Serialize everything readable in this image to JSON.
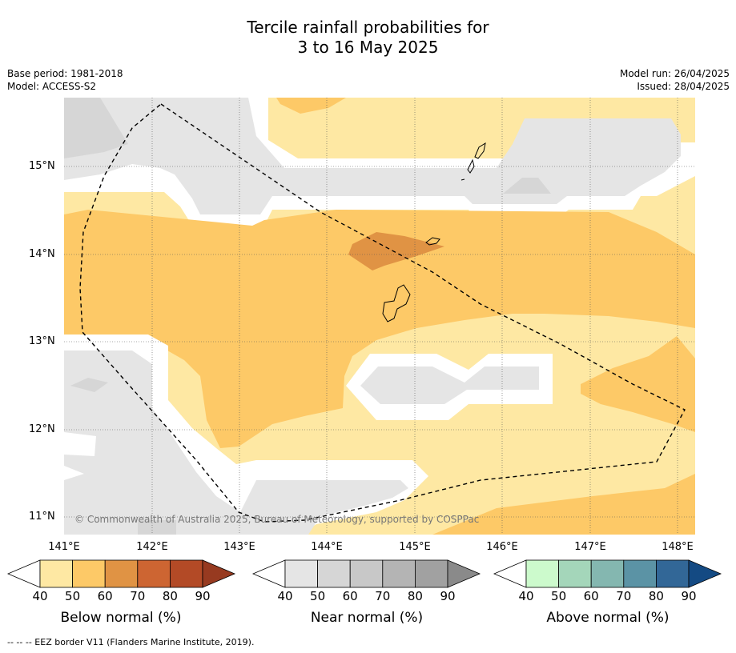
{
  "title": {
    "line1": "Tercile rainfall probabilities for",
    "line2": "3 to 16 May 2025"
  },
  "meta_left": {
    "base_period": "Base period: 1981-2018",
    "model": "Model: ACCESS-S2"
  },
  "meta_right": {
    "model_run": "Model run: 26/04/2025",
    "issued": "Issued: 28/04/2025"
  },
  "map": {
    "latitude_labels": [
      "15°N",
      "14°N",
      "13°N",
      "12°N",
      "11°N"
    ],
    "longitude_labels": [
      "141°E",
      "142°E",
      "143°E",
      "144°E",
      "145°E",
      "146°E",
      "147°E",
      "148°E"
    ],
    "copyright": "© Commonwealth of Australia 2025, Bureau of Meteorology, supported by COSPPac"
  },
  "colorbars": [
    {
      "title": "Below normal (%)",
      "ticks": [
        "40",
        "50",
        "60",
        "70",
        "80",
        "90"
      ],
      "colors": [
        "#fee8a3",
        "#fdc967",
        "#e09344",
        "#cd6532",
        "#b34a26",
        "#973a20"
      ]
    },
    {
      "title": "Near normal (%)",
      "ticks": [
        "40",
        "50",
        "60",
        "70",
        "80",
        "90"
      ],
      "colors": [
        "#e5e5e5",
        "#d6d6d6",
        "#c8c8c8",
        "#b4b4b4",
        "#a1a1a1",
        "#8a8a8a"
      ]
    },
    {
      "title": "Above normal (%)",
      "ticks": [
        "40",
        "50",
        "60",
        "70",
        "80",
        "90"
      ],
      "colors": [
        "#ccfacc",
        "#a4d6ba",
        "#84b7b0",
        "#5b93a5",
        "#326797",
        "#144a83"
      ]
    }
  ],
  "footnote": "--  --  -- EEZ border V11 (Flanders Marine Institute, 2019)."
}
